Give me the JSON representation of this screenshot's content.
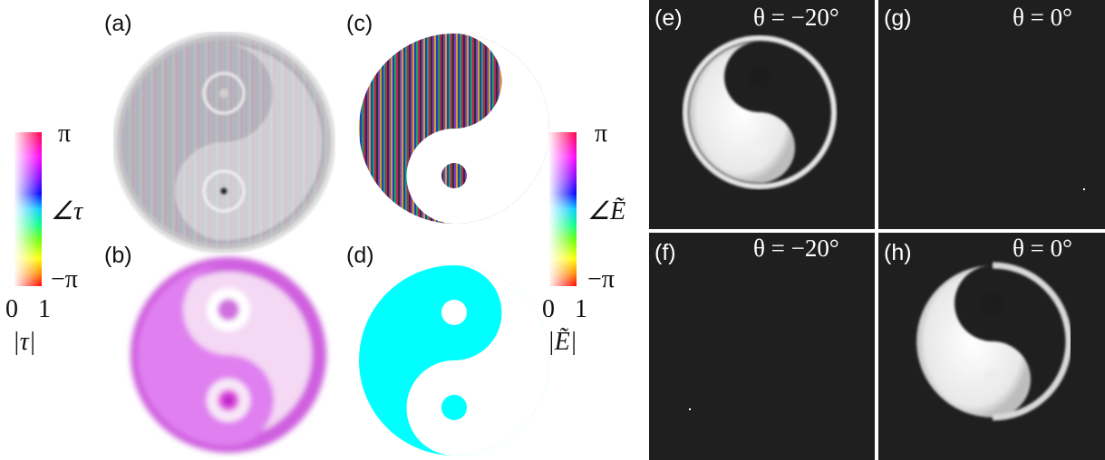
{
  "panels": {
    "a": "(a)",
    "b": "(b)",
    "c": "(c)",
    "d": "(d)",
    "e": "(e)",
    "f": "(f)",
    "g": "(g)",
    "h": "(h)"
  },
  "colorbar_left": {
    "top": "π",
    "middle": "∠τ",
    "bottom": "−π",
    "mag_min": "0",
    "mag_max": "1",
    "mag_label": "|τ|"
  },
  "colorbar_right": {
    "top": "π",
    "middle": "∠Ẽ",
    "bottom": "−π",
    "mag_min": "0",
    "mag_max": "1",
    "mag_label": "|Ẽ|"
  },
  "angles": {
    "e": "θ = −20°",
    "f": "θ = −20°",
    "g": "θ = 0°",
    "h": "θ = 0°"
  },
  "colors": {
    "cyan": "#00ffff",
    "magenta": "#ff60ff",
    "dark_bg": "#1f1f1f"
  }
}
